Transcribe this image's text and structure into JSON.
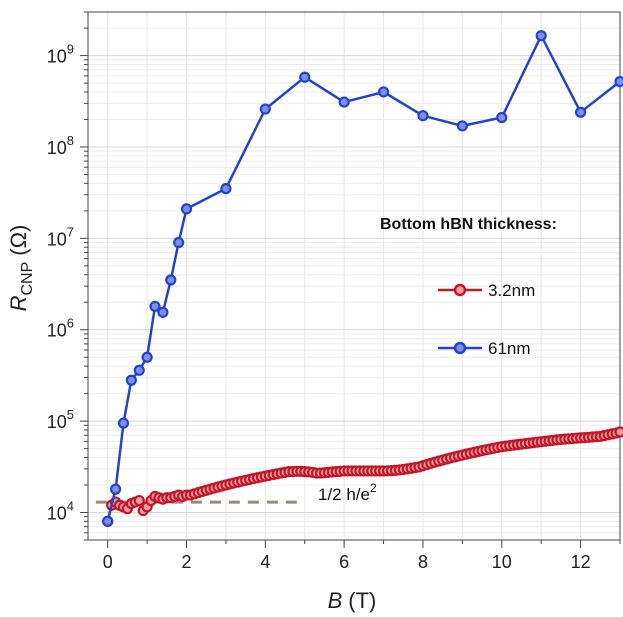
{
  "chart_data": {
    "type": "line",
    "x_axis": {
      "label_italic": "B",
      "label_unit": "(T)",
      "xlim": [
        -0.5,
        13
      ],
      "ticks": [
        0,
        2,
        4,
        6,
        8,
        10,
        12
      ],
      "tick_labels": [
        "0",
        "2",
        "4",
        "6",
        "8",
        "10",
        "12"
      ]
    },
    "y_axis": {
      "label_italic": "R",
      "label_sub": "CNP",
      "label_unit": "(Ω)",
      "scale": "log",
      "ylim": [
        5000,
        3000000000
      ],
      "ticks": [
        10000,
        100000,
        1000000,
        10000000,
        100000000,
        1000000000
      ],
      "tick_exponents": [
        "4",
        "5",
        "6",
        "7",
        "8",
        "9"
      ],
      "tick_base": "10"
    },
    "grid": true,
    "legend": {
      "title": "Bottom hBN thickness:",
      "placement": "right"
    },
    "series": [
      {
        "name": "3.2nm",
        "color": "#c0182a",
        "fill": "#f4a0a0",
        "x": [
          0,
          0.1,
          0.2,
          0.3,
          0.4,
          0.5,
          0.6,
          0.7,
          0.8,
          0.9,
          1.0,
          1.1,
          1.2,
          1.3,
          1.4,
          1.5,
          1.6,
          1.7,
          1.8,
          1.9,
          2.0,
          2.1,
          2.2,
          2.3,
          2.4,
          2.5,
          2.6,
          2.7,
          2.8,
          2.9,
          3.0,
          3.1,
          3.2,
          3.3,
          3.4,
          3.5,
          3.6,
          3.7,
          3.8,
          3.9,
          4.0,
          4.1,
          4.2,
          4.3,
          4.4,
          4.5,
          4.6,
          4.7,
          4.8,
          4.9,
          5.0,
          5.1,
          5.2,
          5.3,
          5.4,
          5.5,
          5.6,
          5.7,
          5.8,
          5.9,
          6.0,
          6.1,
          6.2,
          6.3,
          6.4,
          6.5,
          6.6,
          6.7,
          6.8,
          6.9,
          7.0,
          7.1,
          7.2,
          7.3,
          7.4,
          7.5,
          7.6,
          7.7,
          7.8,
          7.9,
          8.0,
          8.1,
          8.2,
          8.3,
          8.4,
          8.5,
          8.6,
          8.7,
          8.8,
          8.9,
          9.0,
          9.1,
          9.2,
          9.3,
          9.4,
          9.5,
          9.6,
          9.7,
          9.8,
          9.9,
          10.0,
          10.1,
          10.2,
          10.3,
          10.4,
          10.5,
          10.6,
          10.7,
          10.8,
          10.9,
          11.0,
          11.1,
          11.2,
          11.3,
          11.4,
          11.5,
          11.6,
          11.7,
          11.8,
          11.9,
          12.0,
          12.1,
          12.2,
          12.3,
          12.4,
          12.5,
          12.6,
          12.7,
          12.8,
          12.9,
          13.0
        ],
        "y": [
          8000,
          12000,
          13000,
          12000,
          11500,
          11000,
          12500,
          13000,
          13500,
          10500,
          11500,
          13500,
          15000,
          14500,
          14000,
          14500,
          14500,
          15000,
          15500,
          15000,
          15500,
          15500,
          16000,
          16500,
          17000,
          17500,
          18000,
          18500,
          19000,
          19500,
          20000,
          20500,
          21000,
          21500,
          22000,
          22500,
          23000,
          23500,
          24000,
          24500,
          25000,
          25500,
          26000,
          26500,
          27000,
          27500,
          28000,
          28000,
          28200,
          28200,
          28000,
          27800,
          27500,
          27000,
          27000,
          27200,
          27500,
          27800,
          28000,
          28200,
          28500,
          28500,
          28500,
          28500,
          28500,
          28500,
          28500,
          28500,
          28500,
          28500,
          28500,
          28600,
          28700,
          28900,
          29200,
          29600,
          30000,
          30500,
          31000,
          31500,
          32500,
          33500,
          34500,
          35500,
          36500,
          37500,
          38500,
          39500,
          40500,
          41500,
          42500,
          43500,
          44500,
          45500,
          46500,
          47500,
          48500,
          49500,
          50500,
          51500,
          52500,
          53200,
          53900,
          54600,
          55300,
          56000,
          56700,
          57400,
          58100,
          58800,
          59500,
          60200,
          60900,
          61600,
          62300,
          63000,
          63500,
          64000,
          64500,
          65000,
          65500,
          66000,
          66500,
          67000,
          67500,
          68000,
          69500,
          71000,
          72500,
          74000,
          76000
        ]
      },
      {
        "name": "61nm",
        "color": "#2244c8",
        "fill": "#7f8ef0",
        "x": [
          0,
          0.2,
          0.4,
          0.6,
          0.8,
          1.0,
          1.2,
          1.4,
          1.6,
          1.8,
          2.0,
          3.0,
          4.0,
          5.0,
          6.0,
          7.0,
          8.0,
          9.0,
          10.0,
          11.0,
          12.0,
          13.0
        ],
        "y": [
          8000,
          18000,
          95000,
          280000,
          360000,
          500000,
          1800000,
          1550000,
          3500000,
          9000000,
          21000000,
          35000000,
          260000000,
          580000000,
          310000000,
          400000000,
          220000000,
          170000000,
          210000000,
          1650000000,
          240000000,
          520000000
        ]
      }
    ],
    "annotation": {
      "text_main": "1/2 h/e",
      "text_sup": "2",
      "y": 13000,
      "x_start": -0.3,
      "x_end": 5.0,
      "color": "#9a8a7a"
    }
  }
}
